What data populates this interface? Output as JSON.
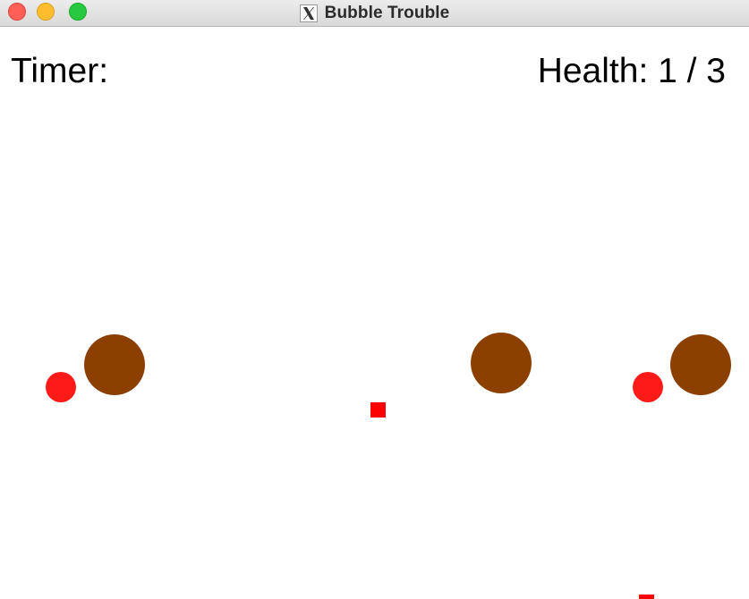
{
  "window": {
    "title": "Bubble Trouble",
    "app_icon": "x11-icon"
  },
  "hud": {
    "timer_label": "Timer:",
    "health_label": "Health: 1 / 3",
    "health_current": 1,
    "health_max": 3
  },
  "colors": {
    "large_bubble": "#8b4000",
    "small_bubble": "#ff1a1a",
    "projectile": "#ff0000",
    "background": "#ffffff"
  },
  "entities": {
    "large_bubbles": 3,
    "small_bubbles": 2,
    "projectiles": 2
  }
}
